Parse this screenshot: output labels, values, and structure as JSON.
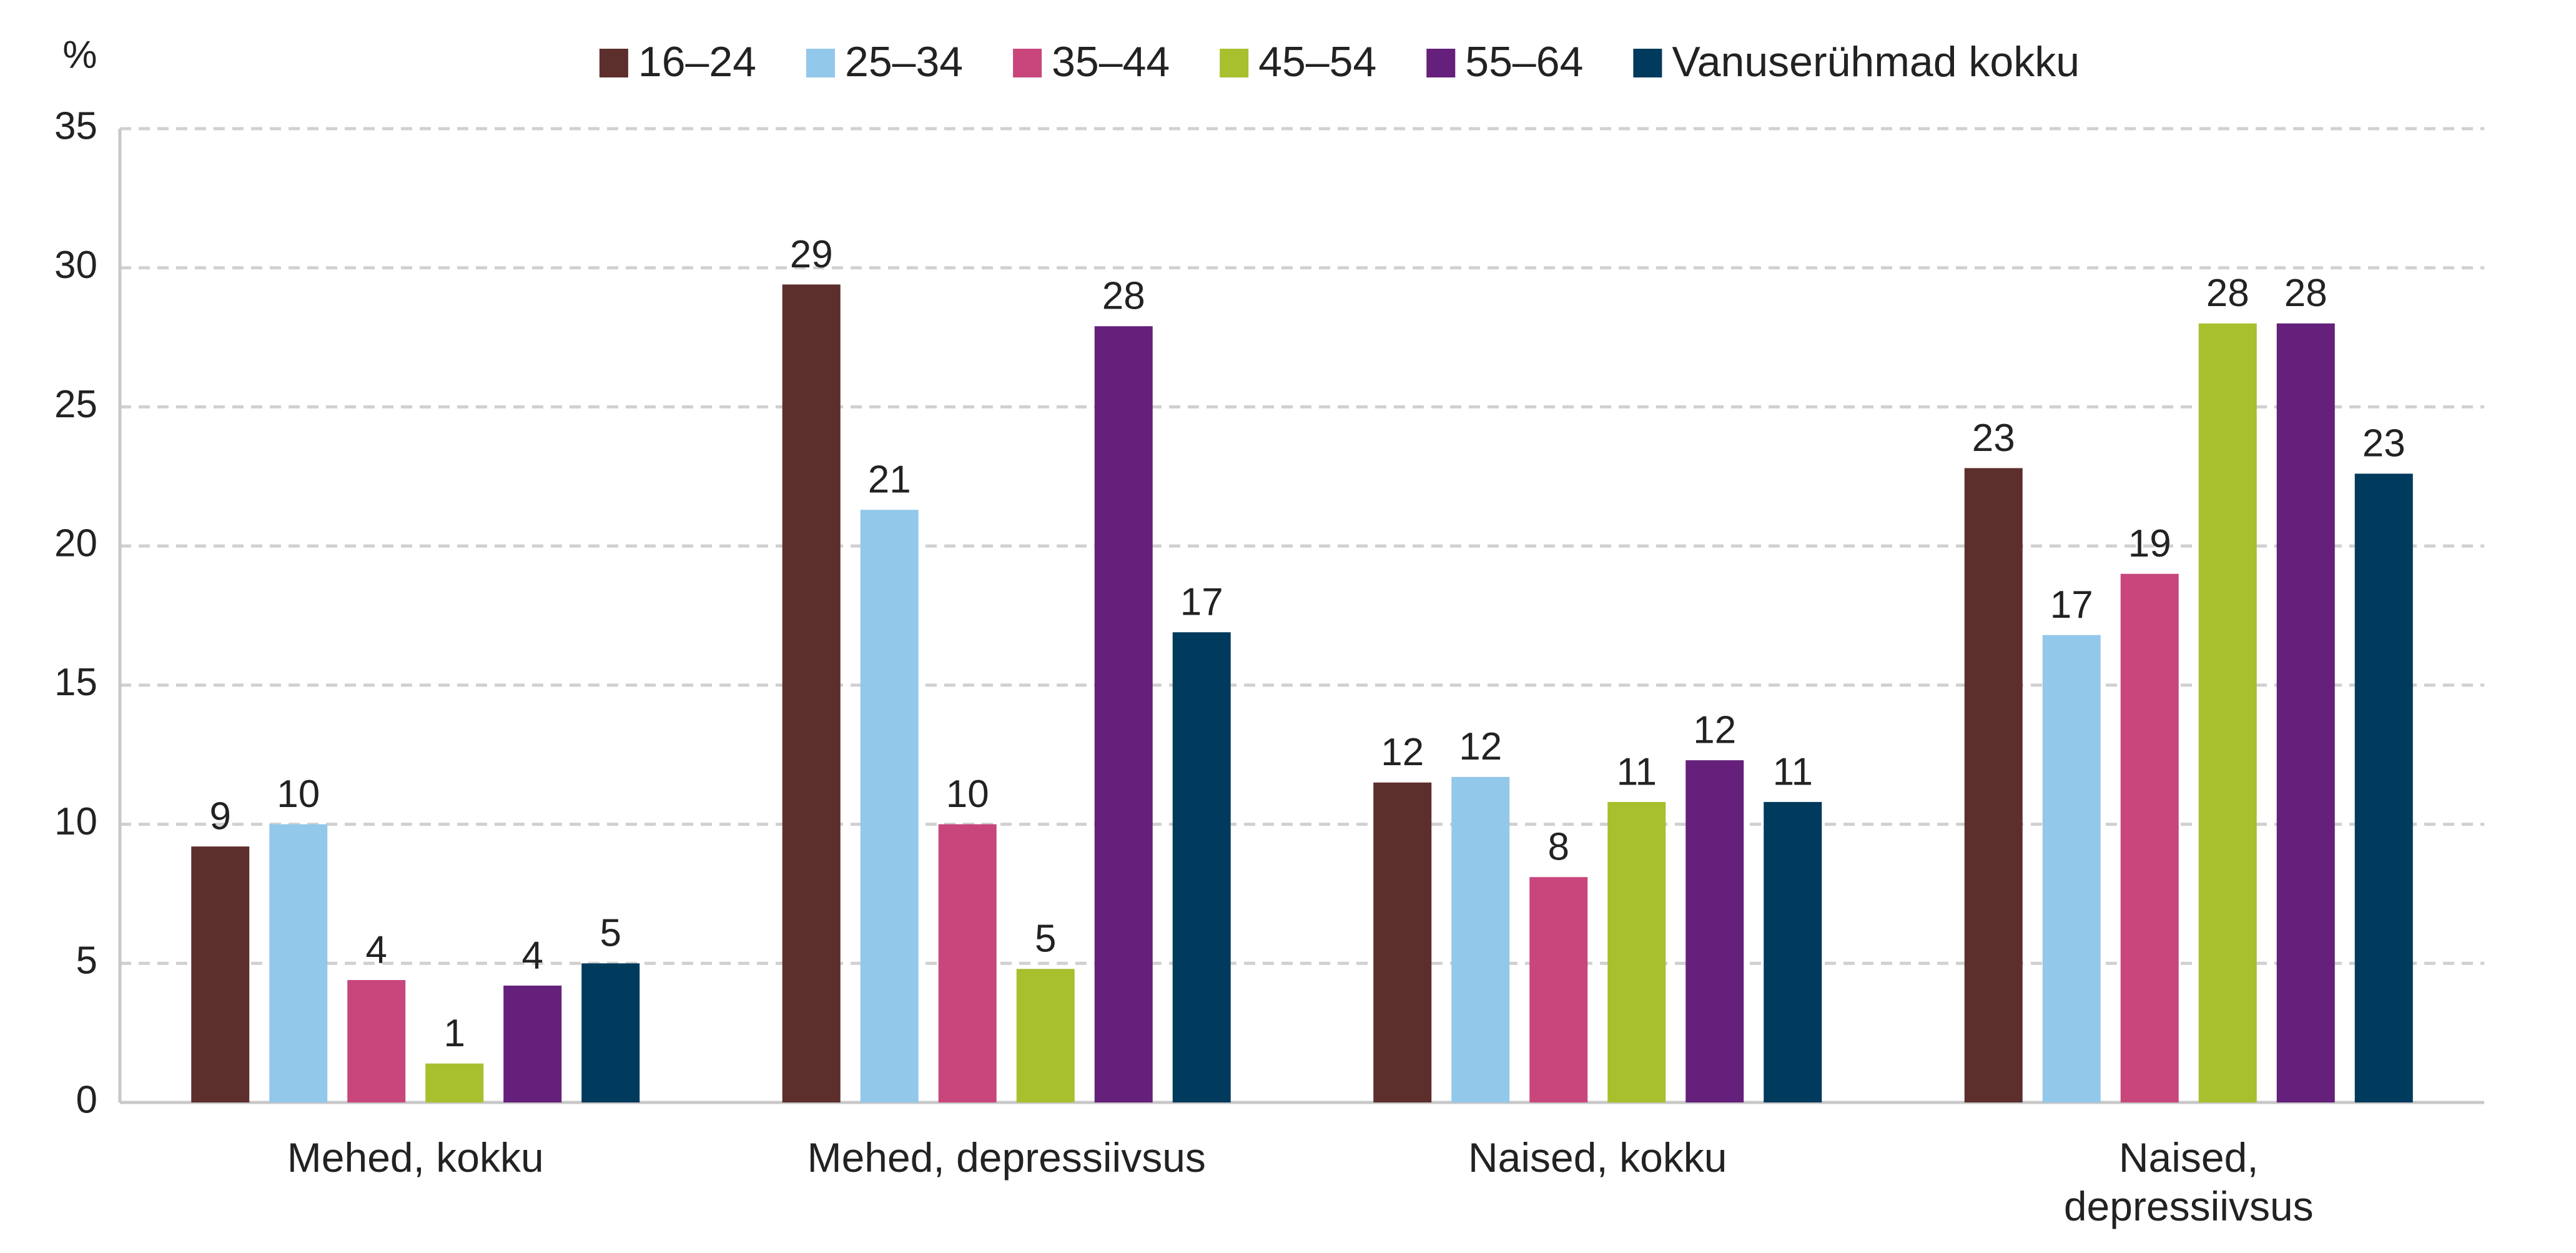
{
  "chart_data": {
    "type": "bar",
    "y_label": "%",
    "categories": [
      "Mehed, kokku",
      "Mehed, depressiivsus",
      "Naised, kokku",
      "Naised, depressiivsus"
    ],
    "series": [
      {
        "name": "16–24",
        "color": "#5c2f2c",
        "values": [
          9.2,
          29.4,
          11.5,
          22.8
        ],
        "value_labels": [
          "9",
          "29",
          "12",
          "23"
        ]
      },
      {
        "name": "25–34",
        "color": "#92c8ea",
        "values": [
          10.0,
          21.3,
          11.7,
          16.8
        ],
        "value_labels": [
          "10",
          "21",
          "12",
          "17"
        ]
      },
      {
        "name": "35–44",
        "color": "#c8467c",
        "values": [
          4.4,
          10.0,
          8.1,
          19.0
        ],
        "value_labels": [
          "4",
          "10",
          "8",
          "19"
        ]
      },
      {
        "name": "45–54",
        "color": "#a8bf2e",
        "values": [
          1.4,
          4.8,
          10.8,
          28.0
        ],
        "value_labels": [
          "1",
          "5",
          "11",
          "28"
        ]
      },
      {
        "name": "55–64",
        "color": "#64207a",
        "values": [
          4.2,
          27.9,
          12.3,
          28.0
        ],
        "value_labels": [
          "4",
          "28",
          "12",
          "28"
        ]
      },
      {
        "name": "Vanuserühmad kokku",
        "color": "#003a5c",
        "values": [
          5.0,
          16.9,
          10.8,
          22.6
        ],
        "value_labels": [
          "5",
          "17",
          "11",
          "23"
        ]
      }
    ],
    "ylim": [
      0,
      35
    ],
    "yticks": [
      0,
      5,
      10,
      15,
      20,
      25,
      30,
      35
    ],
    "grid": true,
    "legend": "top"
  }
}
